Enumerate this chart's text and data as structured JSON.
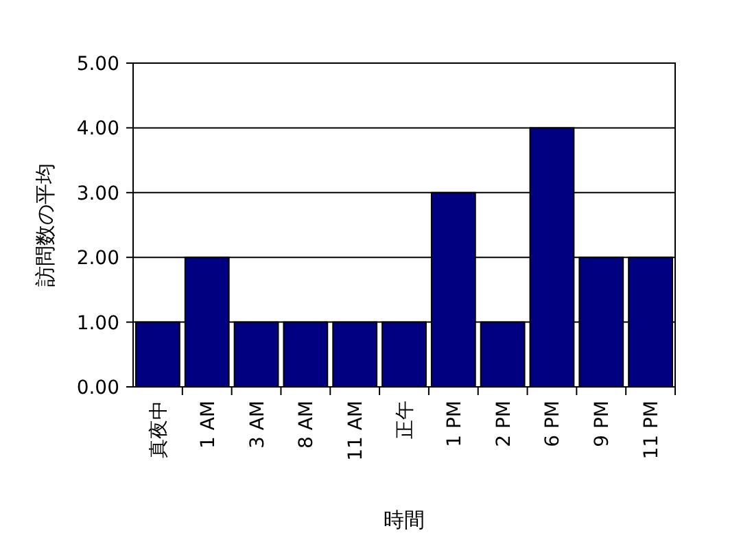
{
  "chart_data": {
    "type": "bar",
    "xlabel": "時間",
    "ylabel": "訪問数の平均",
    "categories": [
      "真夜中",
      "1 AM",
      "3 AM",
      "8 AM",
      "11 AM",
      "正午",
      "1 PM",
      "2 PM",
      "6 PM",
      "9 PM",
      "11 PM"
    ],
    "values": [
      1,
      2,
      1,
      1,
      1,
      1,
      3,
      1,
      4,
      2,
      2
    ],
    "color": "#000080",
    "ylim": [
      0,
      5
    ],
    "yticks": [
      {
        "value": 0,
        "label": "0.00"
      },
      {
        "value": 1,
        "label": "1.00"
      },
      {
        "value": 2,
        "label": "2.00"
      },
      {
        "value": 3,
        "label": "3.00"
      },
      {
        "value": 4,
        "label": "4.00"
      },
      {
        "value": 5,
        "label": "5.00"
      }
    ],
    "grid": "y"
  }
}
